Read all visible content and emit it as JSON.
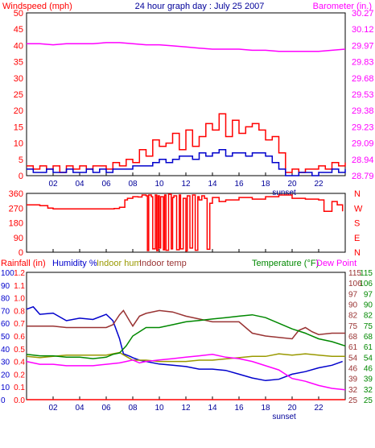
{
  "title": "24 hour graph day : July 25 2007",
  "colors": {
    "red": "#ff0000",
    "magenta": "#ff00ff",
    "blue": "#0000cc",
    "darkblue": "#000099",
    "olive": "#999900",
    "maroon": "#993333",
    "green": "#008800",
    "frame": "#000000"
  },
  "chart_data": [
    {
      "type": "line",
      "labels": {
        "left": "Windspeed (mph)",
        "center": "24 hour graph day : July 25 2007",
        "right": "Barometer (in.)"
      },
      "y_left": {
        "range": [
          0,
          50
        ],
        "ticks": [
          "0",
          "5",
          "10",
          "15",
          "20",
          "25",
          "30",
          "35",
          "40",
          "45",
          "50"
        ]
      },
      "y_right": {
        "range": [
          28.79,
          30.27
        ],
        "ticks": [
          "28.79",
          "28.94",
          "29.09",
          "29.23",
          "29.38",
          "29.53",
          "29.68",
          "29.83",
          "29.97",
          "30.12",
          "30.27"
        ]
      },
      "x": {
        "range": [
          0,
          24
        ],
        "ticks": [
          "02",
          "04",
          "06",
          "08",
          "10",
          "12",
          "14",
          "16",
          "18",
          "20",
          "22"
        ],
        "sunset_label": "sunset",
        "sunset_hour": 19.4
      },
      "series": [
        {
          "name": "Windspeed",
          "axis": "left",
          "color": "#ff0000",
          "x": [
            0,
            0.5,
            1,
            1.5,
            2,
            2.5,
            3,
            3.5,
            4,
            4.5,
            5,
            5.5,
            6,
            6.5,
            7,
            7.5,
            8,
            8.5,
            9,
            9.5,
            10,
            10.5,
            11,
            11.5,
            12,
            12.5,
            13,
            13.5,
            14,
            14.5,
            15,
            15.5,
            16,
            16.5,
            17,
            17.5,
            18,
            18.5,
            19,
            19.5,
            20,
            20.5,
            21,
            21.5,
            22,
            22.5,
            23,
            23.5,
            24
          ],
          "y": [
            3,
            2,
            3,
            2,
            3,
            1,
            3,
            2,
            3,
            2,
            3,
            3,
            2,
            4,
            3,
            5,
            4,
            8,
            6,
            11,
            9,
            10,
            13,
            8,
            14,
            9,
            12,
            16,
            14,
            19,
            12,
            17,
            13,
            15,
            16,
            14,
            11,
            12,
            7,
            1,
            2,
            1,
            2,
            2,
            3,
            2,
            4,
            3,
            4
          ]
        },
        {
          "name": "Gust",
          "axis": "left",
          "color": "#0000cc",
          "x": [
            0,
            0.5,
            1,
            1.5,
            2,
            2.5,
            3,
            3.5,
            4,
            4.5,
            5,
            5.5,
            6,
            6.5,
            7,
            7.5,
            8,
            8.5,
            9,
            9.5,
            10,
            10.5,
            11,
            11.5,
            12,
            12.5,
            13,
            13.5,
            14,
            14.5,
            15,
            15.5,
            16,
            16.5,
            17,
            17.5,
            18,
            18.5,
            19,
            19.5,
            20,
            20.5,
            21,
            21.5,
            22,
            22.5,
            23,
            23.5,
            24
          ],
          "y": [
            2,
            1,
            1,
            2,
            1,
            1,
            2,
            1,
            1,
            2,
            1,
            2,
            1,
            2,
            2,
            2,
            3,
            3,
            3,
            4,
            5,
            4,
            5,
            6,
            6,
            5,
            7,
            6,
            7,
            8,
            6,
            7,
            7,
            6,
            7,
            7,
            6,
            4,
            2,
            0,
            0,
            1,
            1,
            0,
            1,
            1,
            2,
            1,
            2
          ]
        },
        {
          "name": "Barometer",
          "axis": "right",
          "color": "#ff00ff",
          "x": [
            0,
            1,
            2,
            3,
            4,
            5,
            6,
            7,
            8,
            9,
            10,
            11,
            12,
            13,
            14,
            15,
            16,
            17,
            18,
            19,
            20,
            21,
            22,
            23,
            24
          ],
          "y": [
            29.99,
            29.99,
            29.98,
            29.99,
            29.99,
            29.99,
            30.0,
            30.0,
            29.99,
            29.98,
            29.98,
            29.97,
            29.96,
            29.95,
            29.94,
            29.94,
            29.94,
            29.93,
            29.93,
            29.92,
            29.92,
            29.92,
            29.92,
            29.93,
            29.94
          ]
        }
      ]
    },
    {
      "type": "line",
      "y_left": {
        "range": [
          0,
          360
        ],
        "ticks": [
          "0",
          "90",
          "180",
          "270",
          "360"
        ]
      },
      "y_right": {
        "ticks": [
          "N",
          "E",
          "S",
          "W",
          "N"
        ]
      },
      "x": {
        "range": [
          0,
          24
        ]
      },
      "series": [
        {
          "name": "Wind direction",
          "axis": "left",
          "color": "#ff0000",
          "x": [
            0,
            1,
            1.6,
            2,
            4,
            5,
            6,
            6.6,
            7,
            7.4,
            7.6,
            8,
            8.4,
            8.7,
            9,
            9.1,
            9.2,
            9.4,
            9.5,
            9.7,
            9.8,
            9.9,
            10,
            10.1,
            10.3,
            10.4,
            10.5,
            10.7,
            10.9,
            11,
            11.1,
            11.3,
            11.5,
            11.6,
            11.8,
            12,
            12.1,
            12.3,
            12.5,
            12.7,
            12.9,
            13,
            13.2,
            13.4,
            13.6,
            13.8,
            14,
            14.5,
            15,
            16,
            17,
            18,
            19,
            20,
            21,
            22,
            22.4,
            23,
            23.4,
            23.8
          ],
          "y": [
            290,
            285,
            270,
            265,
            265,
            265,
            265,
            268,
            275,
            320,
            330,
            340,
            338,
            350,
            345,
            10,
            350,
            340,
            20,
            350,
            10,
            345,
            25,
            340,
            15,
            350,
            12,
            355,
            20,
            335,
            345,
            15,
            350,
            20,
            330,
            8,
            345,
            25,
            350,
            12,
            340,
            320,
            345,
            330,
            18,
            300,
            335,
            310,
            320,
            335,
            325,
            340,
            350,
            330,
            325,
            320,
            250,
            310,
            290,
            250
          ]
        }
      ]
    },
    {
      "type": "line",
      "labels": {
        "rainfall": "Rainfall (in)",
        "humidity": "Humidity %",
        "indoor_hum": "Indoor hum",
        "indoor_temp": "Indoor temp",
        "temperature": "Temperature (°F)",
        "dew_point": "Dew Point"
      },
      "y_rain": {
        "range": [
          0,
          1.2
        ],
        "ticks": [
          "0.0",
          "0.1",
          "0.2",
          "0.4",
          "0.5",
          "0.6",
          "0.7",
          "0.8",
          "1.0",
          "1.1",
          "1.2"
        ]
      },
      "y_hum": {
        "range": [
          0,
          100
        ],
        "ticks": [
          "0",
          "10",
          "20",
          "30",
          "40",
          "50",
          "60",
          "70",
          "80",
          "90",
          "100"
        ]
      },
      "y_temp": {
        "range": [
          25,
          115
        ],
        "ticks": [
          "25",
          "32",
          "39",
          "46",
          "54",
          "61",
          "68",
          "75",
          "82",
          "90",
          "97",
          "106",
          "115"
        ]
      },
      "x": {
        "range": [
          0,
          24
        ],
        "ticks": [
          "02",
          "04",
          "06",
          "08",
          "10",
          "12",
          "14",
          "16",
          "18",
          "20",
          "22"
        ],
        "sunset_label": "sunset",
        "sunset_hour": 19.4
      },
      "series": [
        {
          "name": "Rainfall",
          "axis": "rain",
          "color": "#ff0000",
          "x": [
            0,
            24
          ],
          "y": [
            0.0,
            0.0
          ]
        },
        {
          "name": "Humidity",
          "axis": "hum",
          "color": "#0000cc",
          "x": [
            0,
            0.5,
            1,
            2,
            3,
            4,
            5,
            6,
            6.5,
            7,
            7.3,
            7.8,
            8,
            8.5,
            9,
            10,
            11,
            12,
            13,
            14,
            15,
            16,
            17,
            18,
            19,
            20,
            21,
            22,
            23,
            23.8
          ],
          "y": [
            71,
            73,
            67,
            68,
            62,
            64,
            63,
            67,
            62,
            48,
            36,
            34,
            33,
            31,
            30,
            28,
            27,
            26,
            24,
            24,
            23,
            20,
            17,
            15,
            16,
            20,
            22,
            25,
            27,
            30
          ]
        },
        {
          "name": "Indoor hum",
          "axis": "hum",
          "color": "#999900",
          "x": [
            0,
            1,
            2,
            3,
            4,
            5,
            6,
            6.5,
            7,
            7.5,
            8,
            9,
            10,
            11,
            12,
            13,
            14,
            15,
            16,
            17,
            18,
            19,
            20,
            21,
            22,
            23,
            24
          ],
          "y": [
            34,
            33,
            34,
            35,
            35,
            35,
            35,
            36,
            37,
            34,
            31,
            31,
            30,
            30,
            30,
            31,
            31,
            32,
            33,
            34,
            34,
            36,
            35,
            36,
            35,
            34,
            34
          ]
        },
        {
          "name": "Indoor temp",
          "axis": "temp",
          "color": "#993333",
          "x": [
            0,
            1,
            2,
            3,
            4,
            5,
            6,
            6.5,
            7,
            7.3,
            7.8,
            8,
            8.5,
            9,
            10,
            11,
            12,
            13,
            14,
            15,
            16,
            17,
            18,
            19,
            20,
            20.5,
            21,
            21.5,
            22,
            23,
            24
          ],
          "y": [
            77,
            77,
            77,
            76,
            76,
            76,
            76,
            78,
            85,
            88,
            80,
            77,
            84,
            86,
            88,
            87,
            84,
            82,
            80,
            80,
            80,
            72,
            70,
            69,
            68,
            74,
            76,
            73,
            71,
            72,
            72
          ]
        },
        {
          "name": "Temperature",
          "axis": "temp",
          "color": "#008800",
          "x": [
            0,
            1,
            2,
            3,
            4,
            5,
            6,
            6.5,
            7,
            7.5,
            8,
            8.5,
            9,
            10,
            11,
            12,
            13,
            14,
            15,
            16,
            17,
            18,
            19,
            20,
            21,
            22,
            23,
            24
          ],
          "y": [
            57,
            56,
            56,
            55,
            55,
            54,
            55,
            57,
            58,
            63,
            70,
            73,
            76,
            76,
            78,
            80,
            81,
            82,
            83,
            84,
            85,
            83,
            79,
            75,
            72,
            68,
            66,
            63
          ]
        },
        {
          "name": "Dew Point",
          "axis": "temp",
          "color": "#ff00ff",
          "x": [
            0,
            1,
            2,
            3,
            4,
            5,
            6,
            7,
            7.5,
            8,
            8.5,
            9,
            10,
            11,
            12,
            13,
            14,
            15,
            16,
            17,
            18,
            19,
            20,
            21,
            22,
            23,
            24
          ],
          "y": [
            52,
            50,
            50,
            49,
            49,
            49,
            50,
            51,
            52,
            53,
            51,
            52,
            53,
            54,
            55,
            56,
            57,
            55,
            54,
            52,
            49,
            46,
            40,
            38,
            35,
            33,
            32
          ]
        }
      ]
    }
  ]
}
